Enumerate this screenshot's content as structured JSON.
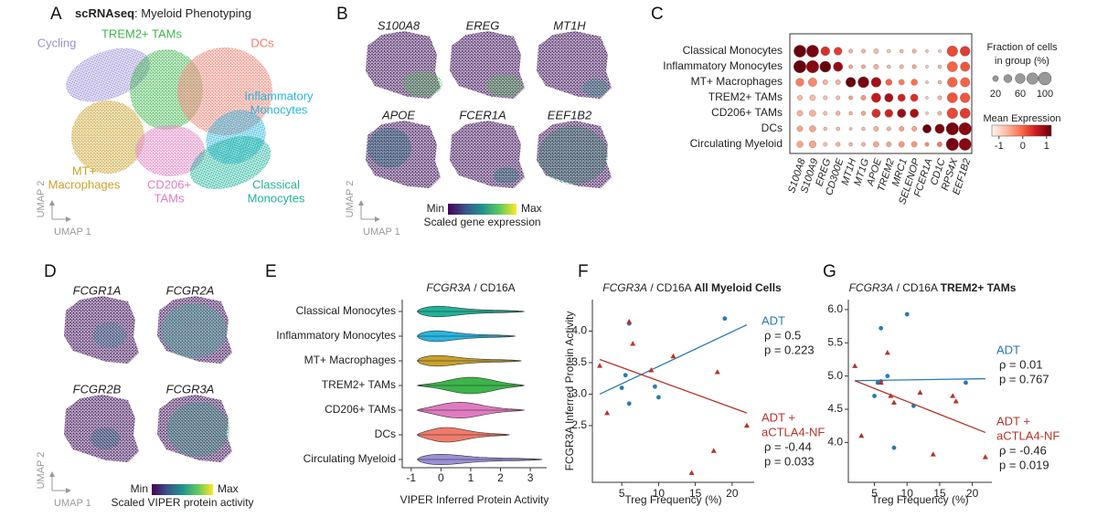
{
  "chart_data": [
    {
      "type": "umap",
      "panel": "A",
      "title_bold": "scRNAseq",
      "title": ": Myeloid Phenotyping",
      "xlabel": "UMAP 1",
      "ylabel": "UMAP 2",
      "clusters": [
        {
          "label": [
            "Cycling"
          ],
          "color": "#9b8fd6"
        },
        {
          "label": [
            "TREM2+ TAMs"
          ],
          "color": "#3cb54a"
        },
        {
          "label": [
            "DCs"
          ],
          "color": "#f07b6b"
        },
        {
          "label": [
            "Inflammatory",
            "Monocytes"
          ],
          "color": "#29b5e0"
        },
        {
          "label": [
            "MT+",
            "Macrophages"
          ],
          "color": "#c9a12a"
        },
        {
          "label": [
            "CD206+",
            "TAMs"
          ],
          "color": "#e07bc0"
        },
        {
          "label": [
            "Classical",
            "Monocytes"
          ],
          "color": "#20b39a"
        }
      ]
    },
    {
      "type": "feature_umap",
      "panel": "B",
      "features": [
        "S100A8",
        "EREG",
        "MT1H",
        "APOE",
        "FCER1A",
        "EEF1B2"
      ],
      "xlabel": "UMAP 1",
      "ylabel": "UMAP 2",
      "colorbar": {
        "min_label": "Min",
        "max_label": "Max",
        "title": "Scaled gene expression"
      }
    },
    {
      "type": "dotplot",
      "panel": "C",
      "rows": [
        "Classical Monocytes",
        "Inflammatory Monocytes",
        "MT+ Macrophages",
        "TREM2+ TAMs",
        "CD206+ TAMs",
        "DCs",
        "Circulating Myeloid"
      ],
      "genes": [
        "S100A8",
        "S100A9",
        "EREG",
        "CD300E",
        "MT1H",
        "MT1G",
        "APOE",
        "TREM2",
        "MRC1",
        "SELENOP",
        "FCER1A",
        "CD1C",
        "RPS4X",
        "EEF1B2"
      ],
      "fraction": [
        [
          90,
          90,
          50,
          40,
          10,
          10,
          15,
          8,
          8,
          10,
          5,
          5,
          70,
          60
        ],
        [
          95,
          95,
          75,
          55,
          10,
          10,
          15,
          8,
          10,
          10,
          5,
          8,
          65,
          55
        ],
        [
          40,
          45,
          15,
          15,
          60,
          75,
          60,
          25,
          20,
          25,
          5,
          8,
          60,
          55
        ],
        [
          15,
          20,
          10,
          10,
          10,
          15,
          55,
          45,
          35,
          35,
          5,
          10,
          65,
          60
        ],
        [
          20,
          25,
          10,
          12,
          8,
          12,
          45,
          40,
          45,
          45,
          5,
          10,
          70,
          65
        ],
        [
          20,
          25,
          8,
          8,
          5,
          8,
          15,
          10,
          15,
          15,
          45,
          55,
          95,
          95
        ],
        [
          25,
          30,
          10,
          12,
          8,
          10,
          20,
          15,
          20,
          20,
          10,
          15,
          95,
          90
        ]
      ],
      "expression": [
        [
          1.2,
          1.1,
          0.4,
          0.3,
          -0.6,
          -0.6,
          -0.7,
          -0.8,
          -0.7,
          -0.6,
          -0.8,
          -0.8,
          0.2,
          0.3
        ],
        [
          1.2,
          1.0,
          1.2,
          0.9,
          -0.5,
          -0.5,
          -0.6,
          -0.7,
          -0.6,
          -0.5,
          -0.8,
          -0.7,
          0.0,
          0.1
        ],
        [
          -0.2,
          -0.3,
          -0.6,
          -0.6,
          1.2,
          1.1,
          0.8,
          0.0,
          -0.2,
          -0.1,
          -0.8,
          -0.7,
          0.0,
          0.0
        ],
        [
          -0.7,
          -0.7,
          -0.7,
          -0.7,
          -0.5,
          -0.4,
          0.6,
          0.8,
          0.5,
          0.4,
          -0.8,
          -0.6,
          0.1,
          0.1
        ],
        [
          -0.6,
          -0.6,
          -0.7,
          -0.6,
          -0.6,
          -0.5,
          0.4,
          0.5,
          0.9,
          0.8,
          -0.8,
          -0.6,
          0.2,
          0.3
        ],
        [
          -0.5,
          -0.5,
          -0.7,
          -0.7,
          -0.7,
          -0.7,
          -0.6,
          -0.6,
          -0.5,
          -0.5,
          1.2,
          1.1,
          1.1,
          1.0
        ],
        [
          -0.5,
          -0.5,
          -0.7,
          -0.6,
          -0.6,
          -0.6,
          -0.5,
          -0.5,
          -0.4,
          -0.4,
          -0.3,
          -0.2,
          1.1,
          1.0
        ]
      ],
      "size_title": [
        "Fraction of cells",
        "in group (%)"
      ],
      "size_legend_values": [
        20,
        40,
        60,
        80,
        100
      ],
      "size_ticks": [
        20,
        60,
        100
      ],
      "color_title": "Mean Expression",
      "colorbar_lim": [
        -1.3,
        1.2
      ],
      "colorbar_ticks": [
        -1,
        0,
        1
      ],
      "cmap_colors": [
        "#fff5f0",
        "#fcbba1",
        "#fb6a4a",
        "#cb181d",
        "#67000d"
      ]
    },
    {
      "type": "feature_umap",
      "panel": "D",
      "features": [
        "FCGR1A",
        "FCGR2A",
        "FCGR2B",
        "FCGR3A"
      ],
      "xlabel": "UMAP 1",
      "ylabel": "UMAP 2",
      "colorbar": {
        "min_label": "Min",
        "max_label": "Max",
        "title": "Scaled VIPER protein activity"
      }
    },
    {
      "type": "violin",
      "panel": "E",
      "title_italic": "FCGR3A",
      "title": " / CD16A",
      "xlabel": "VIPER Inferred Protein Activity",
      "xlim": [
        -1.3,
        3.55
      ],
      "xticks": [
        -1,
        0,
        1,
        2,
        3
      ],
      "categories": [
        "Classical Monocytes",
        "Inflammatory Monocytes",
        "MT+ Macrophages",
        "TREM2+ TAMs",
        "CD206+ TAMs",
        "DCs",
        "Circulating Myeloid"
      ],
      "colors": [
        "#20b39a",
        "#29b5e0",
        "#c9a12a",
        "#3cb54a",
        "#e07bc0",
        "#f07b6b",
        "#9b8fd6"
      ],
      "min": [
        -0.8,
        -0.8,
        -0.8,
        -0.8,
        -0.8,
        -0.8,
        -0.8
      ],
      "max": [
        2.8,
        2.5,
        2.7,
        2.8,
        2.8,
        2.3,
        3.4
      ],
      "mode": [
        -0.6,
        -0.6,
        -0.6,
        1.0,
        0.5,
        0.0,
        -0.6
      ]
    },
    {
      "type": "scatter",
      "panel": "F",
      "title_italic": "FCGR3A",
      "title": " / CD16A ",
      "title_bold": "All Myeloid Cells",
      "xlabel": "Treg Frequency (%)",
      "ylabel": "FCGR3A Inferred Protein Activity",
      "xlim": [
        1,
        23
      ],
      "xticks": [
        5,
        10,
        15,
        20
      ],
      "ylim": [
        1.6,
        4.5
      ],
      "yticks": [
        2.5,
        {
          "value": 3,
          "label": "3.0"
        },
        3.5,
        {
          "value": 4,
          "label": "4.0"
        }
      ],
      "series": [
        {
          "name": [
            "ADT"
          ],
          "color": "#2a7ab0",
          "marker": "circle",
          "x": [
            6,
            5.5,
            5,
            6,
            9.5,
            10,
            19
          ],
          "y": [
            4.12,
            3.3,
            3.1,
            2.85,
            3.12,
            2.95,
            4.2
          ],
          "fit_x": [
            2,
            22
          ],
          "fit_y": [
            3.0,
            4.1
          ],
          "stats": [
            "ρ = 0.5",
            "p = 0.223"
          ]
        },
        {
          "name": [
            "ADT +",
            "aCTLA4-NF"
          ],
          "color": "#b5332a",
          "marker": "triangle",
          "x": [
            2,
            3,
            6,
            6.5,
            9,
            12,
            14.5,
            18,
            17.5,
            22
          ],
          "y": [
            3.45,
            2.7,
            4.15,
            3.8,
            3.38,
            3.6,
            1.75,
            3.35,
            2.1,
            2.5
          ],
          "fit_x": [
            2,
            22
          ],
          "fit_y": [
            3.55,
            2.7
          ],
          "stats": [
            "ρ = -0.44",
            "p = 0.033"
          ]
        }
      ]
    },
    {
      "type": "scatter",
      "panel": "G",
      "title_italic": "FCGR3A",
      "title": " / CD16A ",
      "title_bold": "TREM2+ TAMs",
      "xlabel": "Treg Frequency (%)",
      "xlim": [
        1,
        23
      ],
      "xticks": [
        5,
        10,
        15,
        20
      ],
      "ylim": [
        3.4,
        6.15
      ],
      "yticks": [
        {
          "value": 4,
          "label": "4.0"
        },
        4.5,
        {
          "value": 5,
          "label": "5.0"
        },
        5.5,
        {
          "value": 6,
          "label": "6.0"
        }
      ],
      "series": [
        {
          "name": [
            "ADT"
          ],
          "color": "#2a7ab0",
          "marker": "circle",
          "x": [
            6,
            6,
            5.5,
            5,
            7,
            8,
            10,
            11,
            19
          ],
          "y": [
            5.72,
            4.92,
            4.9,
            4.7,
            5.0,
            3.92,
            5.93,
            4.55,
            4.9
          ],
          "fit_x": [
            2,
            22
          ],
          "fit_y": [
            4.93,
            4.96
          ],
          "stats": [
            "ρ = 0.01",
            "p = 0.767"
          ]
        },
        {
          "name": [
            "ADT +",
            "aCTLA4-NF"
          ],
          "color": "#b5332a",
          "marker": "triangle",
          "x": [
            2,
            3,
            6,
            7,
            7.5,
            8,
            12,
            14,
            17,
            17.5,
            22
          ],
          "y": [
            5.15,
            4.1,
            4.9,
            5.35,
            4.7,
            4.6,
            4.75,
            3.82,
            4.7,
            4.62,
            3.78
          ],
          "fit_x": [
            2,
            22
          ],
          "fit_y": [
            4.93,
            4.15
          ],
          "stats": [
            "ρ = -0.46",
            "p = 0.019"
          ]
        }
      ]
    }
  ]
}
